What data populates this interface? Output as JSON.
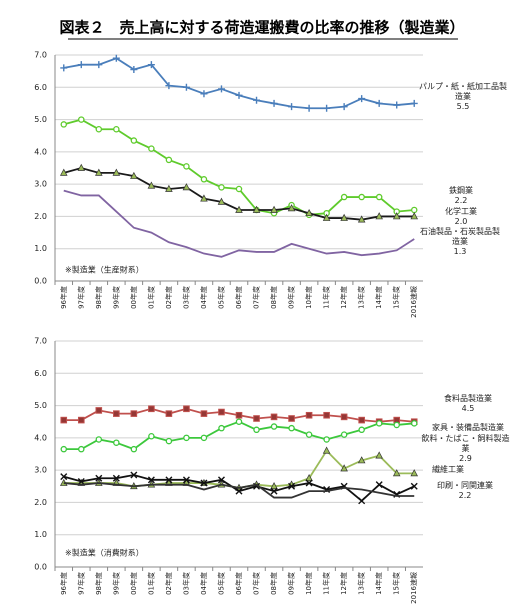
{
  "chart_data": [
    {
      "type": "line",
      "title": "図表２　売上高に対する荷造運搬費の比率の推移（製造業）",
      "annotation": "※製造業（生産財系）",
      "categories": [
        "96年度",
        "97年度",
        "98年度",
        "99年度",
        "00年度",
        "01年度",
        "02年度",
        "03年度",
        "04年度",
        "05年度",
        "06年度",
        "07年度",
        "08年度",
        "09年度",
        "10年度",
        "11年度",
        "12年度",
        "13年度",
        "14年度",
        "15年度",
        "2016速報"
      ],
      "ylim": [
        0,
        7
      ],
      "yticks": [
        {
          "value": 0,
          "label": "0.0"
        },
        {
          "value": 1,
          "label": "1.0"
        },
        {
          "value": 2,
          "label": "2.0"
        },
        {
          "value": 3,
          "label": "3.0"
        },
        {
          "value": 4,
          "label": "4.0"
        },
        {
          "value": 5,
          "label": "5.0"
        },
        {
          "value": 6,
          "label": "6.0"
        },
        {
          "value": 7,
          "label": "7.0"
        }
      ],
      "grid": true,
      "series": [
        {
          "name": "パルプ・紙・紙加工品製造業",
          "color": "#4a7ebb",
          "marker": "plus",
          "values": [
            6.6,
            6.7,
            6.7,
            6.9,
            6.55,
            6.7,
            6.05,
            6.0,
            5.8,
            5.95,
            5.75,
            5.6,
            5.5,
            5.4,
            5.35,
            5.35,
            5.4,
            5.65,
            5.5,
            5.45,
            5.5
          ],
          "value_labels": [
            null,
            null,
            null,
            null,
            null,
            null,
            null,
            null,
            null,
            null,
            null,
            null,
            null,
            null,
            null,
            null,
            null,
            null,
            null,
            null,
            "5.5"
          ]
        },
        {
          "name": "鉄鋼業",
          "color": "#5fcb2c",
          "marker": "circle",
          "values": [
            4.85,
            5.0,
            4.7,
            4.7,
            4.35,
            4.1,
            3.75,
            3.55,
            3.15,
            2.9,
            2.85,
            2.2,
            2.1,
            2.35,
            2.05,
            2.1,
            2.6,
            2.6,
            2.6,
            2.15,
            2.2
          ],
          "value_labels": [
            null,
            null,
            null,
            null,
            null,
            null,
            null,
            null,
            null,
            null,
            null,
            null,
            null,
            null,
            null,
            null,
            null,
            null,
            null,
            null,
            "2.2"
          ]
        },
        {
          "name": "化学工業",
          "color": "#1a1a1a",
          "marker": "triangle",
          "values": [
            3.35,
            3.5,
            3.35,
            3.35,
            3.25,
            2.95,
            2.85,
            2.9,
            2.55,
            2.45,
            2.2,
            2.2,
            2.2,
            2.25,
            2.1,
            1.95,
            1.95,
            1.9,
            2.0,
            2.0,
            2.0
          ],
          "value_labels": [
            null,
            null,
            null,
            null,
            null,
            null,
            null,
            null,
            null,
            null,
            null,
            null,
            null,
            null,
            null,
            null,
            null,
            null,
            null,
            null,
            "2.0"
          ]
        },
        {
          "name": "石油製品・石炭製品製造業",
          "color": "#8064a2",
          "marker": "none",
          "values": [
            2.8,
            2.65,
            2.65,
            2.15,
            1.65,
            1.5,
            1.2,
            1.05,
            0.85,
            0.75,
            0.95,
            0.9,
            0.9,
            1.15,
            1.0,
            0.85,
            0.9,
            0.8,
            0.85,
            0.95,
            1.3
          ],
          "value_labels": [
            null,
            null,
            null,
            null,
            null,
            null,
            null,
            null,
            null,
            null,
            null,
            null,
            null,
            null,
            null,
            null,
            null,
            null,
            null,
            null,
            "1.3"
          ]
        }
      ]
    },
    {
      "type": "line",
      "annotation": "※製造業（消費財系）",
      "categories": [
        "96年度",
        "97年度",
        "98年度",
        "99年度",
        "00年度",
        "01年度",
        "02年度",
        "03年度",
        "04年度",
        "05年度",
        "06年度",
        "07年度",
        "08年度",
        "09年度",
        "10年度",
        "11年度",
        "12年度",
        "13年度",
        "14年度",
        "15年度",
        "2016速報"
      ],
      "ylim": [
        0,
        7
      ],
      "yticks": [
        {
          "value": 0,
          "label": "0.0"
        },
        {
          "value": 1,
          "label": "1.0"
        },
        {
          "value": 2,
          "label": "2.0"
        },
        {
          "value": 3,
          "label": "3.0"
        },
        {
          "value": 4,
          "label": "4.0"
        },
        {
          "value": 5,
          "label": "5.0"
        },
        {
          "value": 6,
          "label": "6.0"
        },
        {
          "value": 7,
          "label": "7.0"
        }
      ],
      "grid": true,
      "series": [
        {
          "name": "食料品製造業",
          "color": "#c0504d",
          "marker": "square",
          "values": [
            4.55,
            4.55,
            4.85,
            4.75,
            4.75,
            4.9,
            4.75,
            4.9,
            4.75,
            4.8,
            4.7,
            4.6,
            4.65,
            4.6,
            4.7,
            4.7,
            4.65,
            4.55,
            4.5,
            4.55,
            4.5
          ],
          "value_labels": [
            null,
            null,
            null,
            null,
            null,
            null,
            null,
            null,
            null,
            null,
            null,
            null,
            null,
            null,
            null,
            null,
            null,
            null,
            null,
            null,
            "4.5"
          ]
        },
        {
          "name": "家具・装備品製造業",
          "color": "#3cc83c",
          "marker": "circle",
          "values": [
            3.65,
            3.65,
            3.95,
            3.85,
            3.65,
            4.05,
            3.9,
            4.0,
            4.0,
            4.3,
            4.5,
            4.25,
            4.35,
            4.3,
            4.1,
            3.95,
            4.1,
            4.25,
            4.45,
            4.4,
            4.45
          ]
        },
        {
          "name": "飲料・たばこ・飼料製造業",
          "color": "#9bbb59",
          "marker": "triangle",
          "values": [
            2.6,
            2.6,
            2.6,
            2.6,
            2.5,
            2.55,
            2.6,
            2.6,
            2.6,
            2.55,
            2.45,
            2.55,
            2.5,
            2.55,
            2.75,
            3.6,
            3.05,
            3.3,
            3.45,
            2.9,
            2.9
          ],
          "value_labels": [
            null,
            null,
            null,
            null,
            null,
            null,
            null,
            null,
            null,
            null,
            null,
            null,
            null,
            null,
            null,
            null,
            null,
            null,
            null,
            null,
            "2.9"
          ]
        },
        {
          "name": "繊維工業",
          "color": "#111111",
          "marker": "x",
          "values": [
            2.8,
            2.65,
            2.75,
            2.75,
            2.85,
            2.7,
            2.7,
            2.7,
            2.6,
            2.7,
            2.35,
            2.5,
            2.35,
            2.5,
            2.6,
            2.4,
            2.5,
            2.05,
            2.55,
            2.25,
            2.5
          ]
        },
        {
          "name": "印刷・同関連業",
          "color": "#333333",
          "marker": "none",
          "values": [
            2.6,
            2.55,
            2.6,
            2.55,
            2.5,
            2.55,
            2.55,
            2.55,
            2.4,
            2.55,
            2.45,
            2.55,
            2.15,
            2.15,
            2.35,
            2.35,
            2.45,
            2.4,
            2.3,
            2.2,
            2.2
          ],
          "value_labels": [
            null,
            null,
            null,
            null,
            null,
            null,
            null,
            null,
            null,
            null,
            null,
            null,
            null,
            null,
            null,
            null,
            null,
            null,
            null,
            null,
            "2.2"
          ]
        }
      ]
    }
  ]
}
